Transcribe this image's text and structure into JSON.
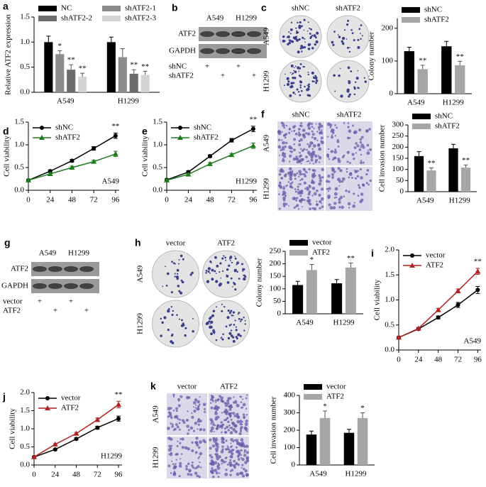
{
  "chart_data": [
    {
      "type": "bar",
      "panel": "a",
      "categories": [
        "A549",
        "H1299"
      ],
      "series": [
        {
          "name": "NC",
          "color": "#000000",
          "values": [
            1.0,
            1.0
          ],
          "errors": [
            0.12,
            0.1
          ]
        },
        {
          "name": "shATF2-1",
          "color": "#8c8c8c",
          "values": [
            0.76,
            0.7
          ],
          "errors": [
            0.07,
            0.17
          ],
          "stars": [
            "*",
            null
          ]
        },
        {
          "name": "shATF2-2",
          "color": "#6b6b6b",
          "values": [
            0.45,
            0.37
          ],
          "errors": [
            0.1,
            0.08
          ],
          "stars": [
            "**",
            "**"
          ]
        },
        {
          "name": "shATF2-3",
          "color": "#d4d4d4",
          "values": [
            0.31,
            0.35
          ],
          "errors": [
            0.07,
            0.07
          ],
          "stars": [
            "**",
            "**"
          ]
        }
      ],
      "ylabel": "Relative ATF2 expression",
      "ylim": [
        0,
        1.5
      ],
      "yticks": [
        {
          "value": 0,
          "label": "0.0"
        },
        0.5,
        {
          "value": 1,
          "label": "1.0"
        },
        1.5
      ],
      "legend": "top",
      "legend_columns": 2
    },
    {
      "type": "bar",
      "categories": [
        "A549",
        "H1299"
      ],
      "series": [
        {
          "name": "shNC",
          "color": "#000000",
          "values": [
            130,
            145
          ],
          "errors": [
            12,
            15
          ]
        },
        {
          "name": "shATF2",
          "color": "#a6a6a6",
          "values": [
            75,
            87
          ],
          "errors": [
            12,
            12
          ],
          "stars": [
            "**",
            "**"
          ]
        }
      ],
      "ylabel": "Colony number",
      "ylim": [
        0,
        230
      ],
      "yticks": [
        0,
        100,
        200
      ],
      "legend": "top",
      "legend_columns": 1
    },
    {
      "type": "line",
      "panel": "d",
      "x": [
        0,
        24,
        48,
        72,
        96
      ],
      "series": [
        {
          "name": "shNC",
          "color": "#000000",
          "marker": "circle",
          "values": [
            0.22,
            0.42,
            0.65,
            0.92,
            1.2
          ],
          "errors": [
            0.02,
            0.03,
            0.03,
            0.04,
            0.06
          ]
        },
        {
          "name": "shATF2",
          "color": "#1e7b1e",
          "marker": "triangle",
          "values": [
            0.22,
            0.36,
            0.5,
            0.63,
            0.8
          ],
          "errors": [
            0.02,
            0.02,
            0.03,
            0.03,
            0.06
          ]
        }
      ],
      "ylabel": "Cell viability",
      "xlim": [
        0,
        100
      ],
      "xticks": [
        0,
        24,
        48,
        72,
        96
      ],
      "ylim": [
        0,
        1.5
      ],
      "yticks": [
        {
          "value": 0,
          "label": "0.0"
        },
        0.5,
        {
          "value": 1,
          "label": "1.0"
        },
        1.5
      ],
      "note": "A549",
      "star": "**",
      "legend": "upper left",
      "legend_columns": 1
    },
    {
      "type": "line",
      "panel": "e",
      "x": [
        0,
        24,
        48,
        72,
        96
      ],
      "series": [
        {
          "name": "shNC",
          "color": "#000000",
          "marker": "circle",
          "values": [
            0.23,
            0.4,
            0.75,
            1.1,
            1.35
          ],
          "errors": [
            0.02,
            0.03,
            0.03,
            0.04,
            0.06
          ]
        },
        {
          "name": "shATF2",
          "color": "#1e7b1e",
          "marker": "triangle",
          "values": [
            0.22,
            0.35,
            0.58,
            0.78,
            0.98
          ],
          "errors": [
            0.02,
            0.02,
            0.03,
            0.03,
            0.06
          ]
        }
      ],
      "ylabel": "Cell viability",
      "xlim": [
        0,
        100
      ],
      "xticks": [
        0,
        24,
        48,
        72,
        96
      ],
      "ylim": [
        0,
        1.5
      ],
      "yticks": [
        {
          "value": 0,
          "label": "0.0"
        },
        0.5,
        {
          "value": 1,
          "label": "1.0"
        },
        1.5
      ],
      "note": "H1299",
      "star": "**",
      "legend": "upper left",
      "legend_columns": 1
    },
    {
      "type": "bar",
      "categories": [
        "A549",
        "H1299"
      ],
      "series": [
        {
          "name": "shNC",
          "color": "#000000",
          "values": [
            160,
            195
          ],
          "errors": [
            20,
            18
          ]
        },
        {
          "name": "shATF2",
          "color": "#a6a6a6",
          "values": [
            95,
            108
          ],
          "errors": [
            12,
            12
          ],
          "stars": [
            "**",
            "**"
          ]
        }
      ],
      "ylabel": "Cell invasion number",
      "ylim": [
        0,
        300
      ],
      "yticks": [
        0,
        50,
        100,
        150,
        200,
        250,
        300
      ],
      "legend": "top",
      "legend_columns": 1
    },
    {
      "type": "bar",
      "categories": [
        "A549",
        "H1299"
      ],
      "series": [
        {
          "name": "vector",
          "color": "#000000",
          "values": [
            115,
            122
          ],
          "errors": [
            15,
            15
          ]
        },
        {
          "name": "ATF2",
          "color": "#a6a6a6",
          "values": [
            175,
            185
          ],
          "errors": [
            22,
            18
          ],
          "stars": [
            "*",
            "**"
          ]
        }
      ],
      "ylabel": "Colony number",
      "ylim": [
        0,
        250
      ],
      "yticks": [
        0,
        50,
        100,
        150,
        200,
        250
      ],
      "legend": "top",
      "legend_columns": 1
    },
    {
      "type": "line",
      "panel": "i",
      "x": [
        0,
        24,
        48,
        72,
        96
      ],
      "series": [
        {
          "name": "vector",
          "color": "#000000",
          "marker": "circle",
          "values": [
            0.25,
            0.42,
            0.65,
            0.9,
            1.2
          ],
          "errors": [
            0.02,
            0.02,
            0.03,
            0.05,
            0.07
          ]
        },
        {
          "name": "ATF2",
          "color": "#b22222",
          "marker": "triangle",
          "values": [
            0.25,
            0.43,
            0.8,
            1.18,
            1.57
          ],
          "errors": [
            0.02,
            0.02,
            0.03,
            0.04,
            0.06
          ]
        }
      ],
      "ylabel": "Cell viability",
      "xlim": [
        0,
        100
      ],
      "xticks": [
        0,
        24,
        48,
        72,
        96
      ],
      "ylim": [
        0,
        2
      ],
      "yticks": [
        {
          "value": 0,
          "label": "0.0"
        },
        0.5,
        {
          "value": 1,
          "label": "1.0"
        },
        1.5,
        {
          "value": 2,
          "label": "2.0"
        }
      ],
      "note": "A549",
      "star": "**",
      "legend": "upper left",
      "legend_columns": 1
    },
    {
      "type": "line",
      "panel": "j",
      "x": [
        0,
        24,
        48,
        72,
        96
      ],
      "series": [
        {
          "name": "vector",
          "color": "#000000",
          "marker": "circle",
          "values": [
            0.22,
            0.43,
            0.72,
            1.03,
            1.28
          ],
          "errors": [
            0.02,
            0.02,
            0.03,
            0.04,
            0.07
          ]
        },
        {
          "name": "ATF2",
          "color": "#b22222",
          "marker": "triangle",
          "values": [
            0.22,
            0.57,
            0.87,
            1.25,
            1.67
          ],
          "errors": [
            0.02,
            0.02,
            0.03,
            0.05,
            0.09
          ]
        }
      ],
      "ylabel": "Cell viability",
      "xlim": [
        0,
        100
      ],
      "xticks": [
        0,
        24,
        48,
        72,
        96
      ],
      "ylim": [
        0,
        2
      ],
      "yticks": [
        {
          "value": 0,
          "label": "0.0"
        },
        0.5,
        {
          "value": 1,
          "label": "1.0"
        },
        1.5,
        {
          "value": 2,
          "label": "2.0"
        }
      ],
      "note": "H1299",
      "star": "**",
      "legend": "upper left",
      "legend_columns": 1
    },
    {
      "type": "bar",
      "categories": [
        "A549",
        "H1299"
      ],
      "series": [
        {
          "name": "vector",
          "color": "#000000",
          "values": [
            175,
            185
          ],
          "errors": [
            20,
            20
          ]
        },
        {
          "name": "ATF2",
          "color": "#a6a6a6",
          "values": [
            270,
            270
          ],
          "errors": [
            40,
            30
          ],
          "stars": [
            "*",
            "*"
          ]
        }
      ],
      "ylabel": "Cell invasion number",
      "ylim": [
        0,
        400
      ],
      "yticks": [
        0,
        100,
        200,
        300,
        400
      ],
      "legend": "top",
      "legend_columns": 1
    }
  ],
  "images": [
    {
      "kind": "blot",
      "panel": "b",
      "columns": [
        "A549",
        "H1299"
      ],
      "bands": [
        "ATF2",
        "GAPDH"
      ],
      "treatments": [
        {
          "label": "shNC",
          "marks": [
            "+",
            "+"
          ]
        },
        {
          "label": "shATF2",
          "marks": [
            "+",
            "+"
          ]
        }
      ]
    },
    {
      "kind": "plates",
      "panel": "c",
      "columns": [
        "shNC",
        "shATF2"
      ],
      "rows": [
        "A549",
        "H1299"
      ]
    },
    {
      "kind": "fields",
      "panel": "f",
      "columns": [
        "shNC",
        "shATF2"
      ],
      "rows": [
        "A549",
        "H1299"
      ]
    },
    {
      "kind": "blot",
      "panel": "g",
      "columns": [
        "A549",
        "H1299"
      ],
      "bands": [
        "ATF2",
        "GAPDH"
      ],
      "treatments": [
        {
          "label": "vector",
          "marks": [
            "+",
            "+"
          ]
        },
        {
          "label": "ATF2",
          "marks": [
            "+",
            "+"
          ]
        }
      ]
    },
    {
      "kind": "plates",
      "panel": "h",
      "columns": [
        "vector",
        "ATF2"
      ],
      "rows": [
        "A549",
        "H1299"
      ]
    },
    {
      "kind": "fields",
      "panel": "k",
      "columns": [
        "vector",
        "ATF2"
      ],
      "rows": [
        "A549",
        "H1299"
      ]
    }
  ]
}
